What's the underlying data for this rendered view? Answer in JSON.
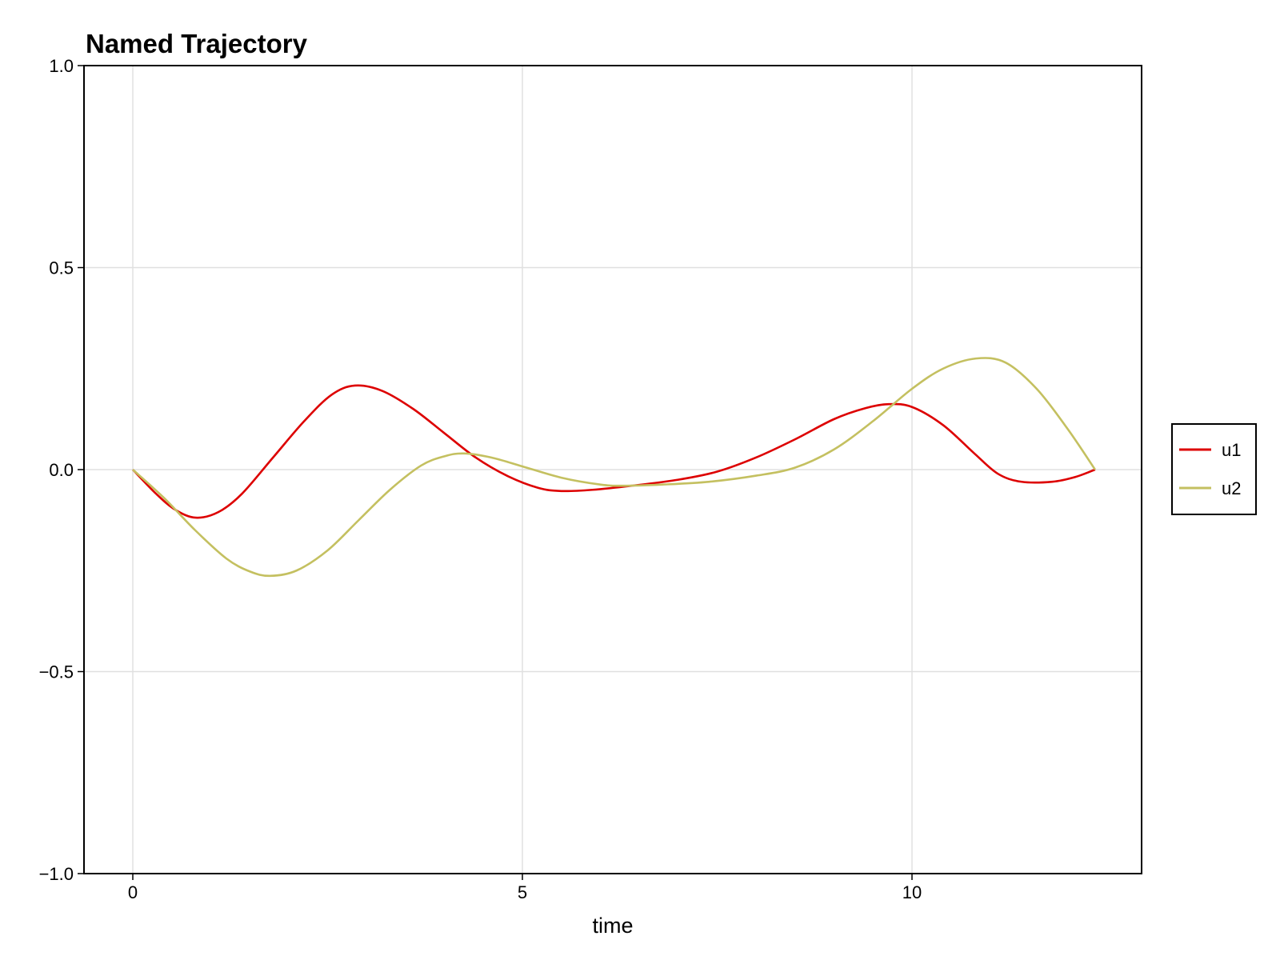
{
  "chart_data": {
    "type": "line",
    "title": "Named Trajectory",
    "xlabel": "time",
    "ylabel": "",
    "xlim": [
      -0.65,
      13.0
    ],
    "ylim": [
      -1.0,
      1.0
    ],
    "xticks": [
      0,
      5,
      10
    ],
    "xtick_labels": [
      "0",
      "5",
      "10"
    ],
    "yticks": [
      -1.0,
      -0.5,
      0.0,
      0.5,
      1.0
    ],
    "ytick_labels": [
      "−1.0",
      "−0.5",
      "0.0",
      "0.5",
      "1.0"
    ],
    "grid": true,
    "legend_position": "right-outside",
    "series": [
      {
        "name": "u1",
        "color": "#dd0000",
        "x": [
          0,
          0.3,
          0.55,
          0.81,
          1.1,
          1.4,
          1.8,
          2.2,
          2.55,
          2.85,
          3.2,
          3.6,
          4.0,
          4.4,
          4.8,
          5.2,
          5.5,
          5.9,
          6.4,
          7.0,
          7.5,
          8.0,
          8.5,
          9.0,
          9.4,
          9.7,
          10.0,
          10.4,
          10.8,
          11.1,
          11.4,
          11.8,
          12.1,
          12.35
        ],
        "y": [
          0,
          -0.06,
          -0.1,
          -0.119,
          -0.105,
          -0.06,
          0.03,
          0.12,
          0.185,
          0.208,
          0.195,
          0.15,
          0.09,
          0.03,
          -0.015,
          -0.045,
          -0.053,
          -0.05,
          -0.04,
          -0.025,
          -0.005,
          0.03,
          0.075,
          0.125,
          0.152,
          0.162,
          0.155,
          0.11,
          0.04,
          -0.01,
          -0.03,
          -0.03,
          -0.018,
          0
        ]
      },
      {
        "name": "u2",
        "color": "#c4c060",
        "x": [
          0,
          0.4,
          0.8,
          1.2,
          1.5,
          1.76,
          2.1,
          2.5,
          2.9,
          3.3,
          3.7,
          4.0,
          4.25,
          4.6,
          5.0,
          5.5,
          6.0,
          6.3,
          6.8,
          7.4,
          8.0,
          8.5,
          9.0,
          9.5,
          10.0,
          10.4,
          10.82,
          11.2,
          11.6,
          12.0,
          12.35
        ],
        "y": [
          0,
          -0.07,
          -0.15,
          -0.22,
          -0.252,
          -0.263,
          -0.25,
          -0.2,
          -0.125,
          -0.05,
          0.01,
          0.033,
          0.04,
          0.03,
          0.008,
          -0.02,
          -0.037,
          -0.04,
          -0.037,
          -0.03,
          -0.015,
          0.005,
          0.05,
          0.12,
          0.2,
          0.25,
          0.275,
          0.265,
          0.2,
          0.1,
          0
        ]
      }
    ]
  },
  "legend": {
    "items": [
      {
        "label": "u1",
        "color": "#dd0000"
      },
      {
        "label": "u2",
        "color": "#c4c060"
      }
    ]
  }
}
